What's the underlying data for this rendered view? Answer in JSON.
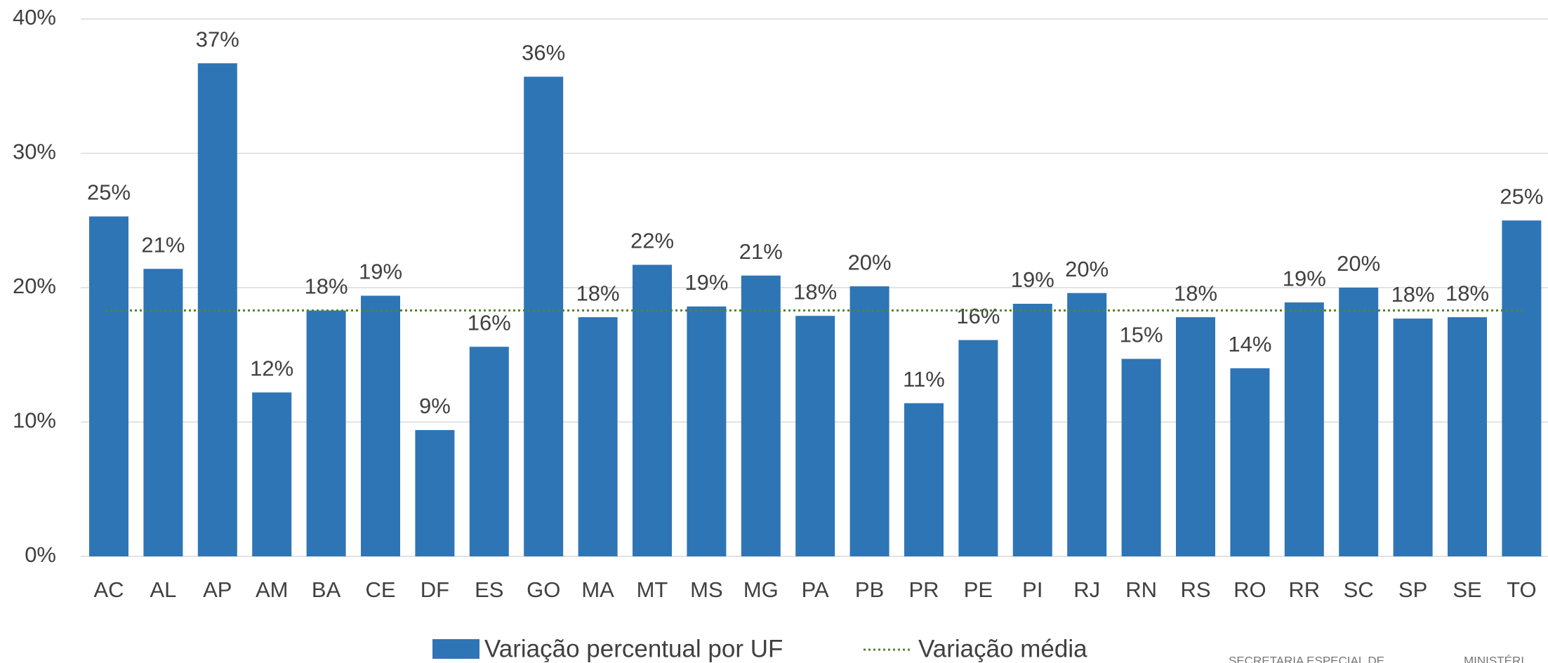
{
  "chart_data": {
    "type": "bar",
    "categories": [
      "AC",
      "AL",
      "AP",
      "AM",
      "BA",
      "CE",
      "DF",
      "ES",
      "GO",
      "MA",
      "MT",
      "MS",
      "MG",
      "PA",
      "PB",
      "PR",
      "PE",
      "PI",
      "RJ",
      "RN",
      "RS",
      "RO",
      "RR",
      "SC",
      "SP",
      "SE",
      "TO"
    ],
    "series": [
      {
        "name": "Variação percentual por UF",
        "color": "#2e75b6",
        "values": [
          25.3,
          21.4,
          36.7,
          12.2,
          18.3,
          19.4,
          9.4,
          15.6,
          35.7,
          17.8,
          21.7,
          18.6,
          20.9,
          17.9,
          20.1,
          11.4,
          16.1,
          18.8,
          19.6,
          14.7,
          17.8,
          14.0,
          18.9,
          20.0,
          17.7,
          17.8,
          25.0
        ],
        "value_labels": [
          "25%",
          "21%",
          "37%",
          "12%",
          "18%",
          "19%",
          "9%",
          "16%",
          "36%",
          "18%",
          "22%",
          "19%",
          "21%",
          "18%",
          "20%",
          "11%",
          "16%",
          "19%",
          "20%",
          "15%",
          "18%",
          "14%",
          "19%",
          "20%",
          "18%",
          "18%",
          "25%"
        ]
      },
      {
        "name": "Variação média",
        "color": "#548235",
        "style": "dotted",
        "value": 18.3
      }
    ],
    "ylim": [
      0,
      40
    ],
    "yticks": [
      {
        "value": 0,
        "label": "0%"
      },
      {
        "value": 10,
        "label": "10%"
      },
      {
        "value": 20,
        "label": "20%"
      },
      {
        "value": 30,
        "label": "30%"
      },
      {
        "value": 40,
        "label": "40%"
      }
    ],
    "grid": true,
    "legend": "bottom",
    "footer": [
      "SECRETARIA ESPECIAL DE",
      "MINISTÉRI"
    ]
  }
}
